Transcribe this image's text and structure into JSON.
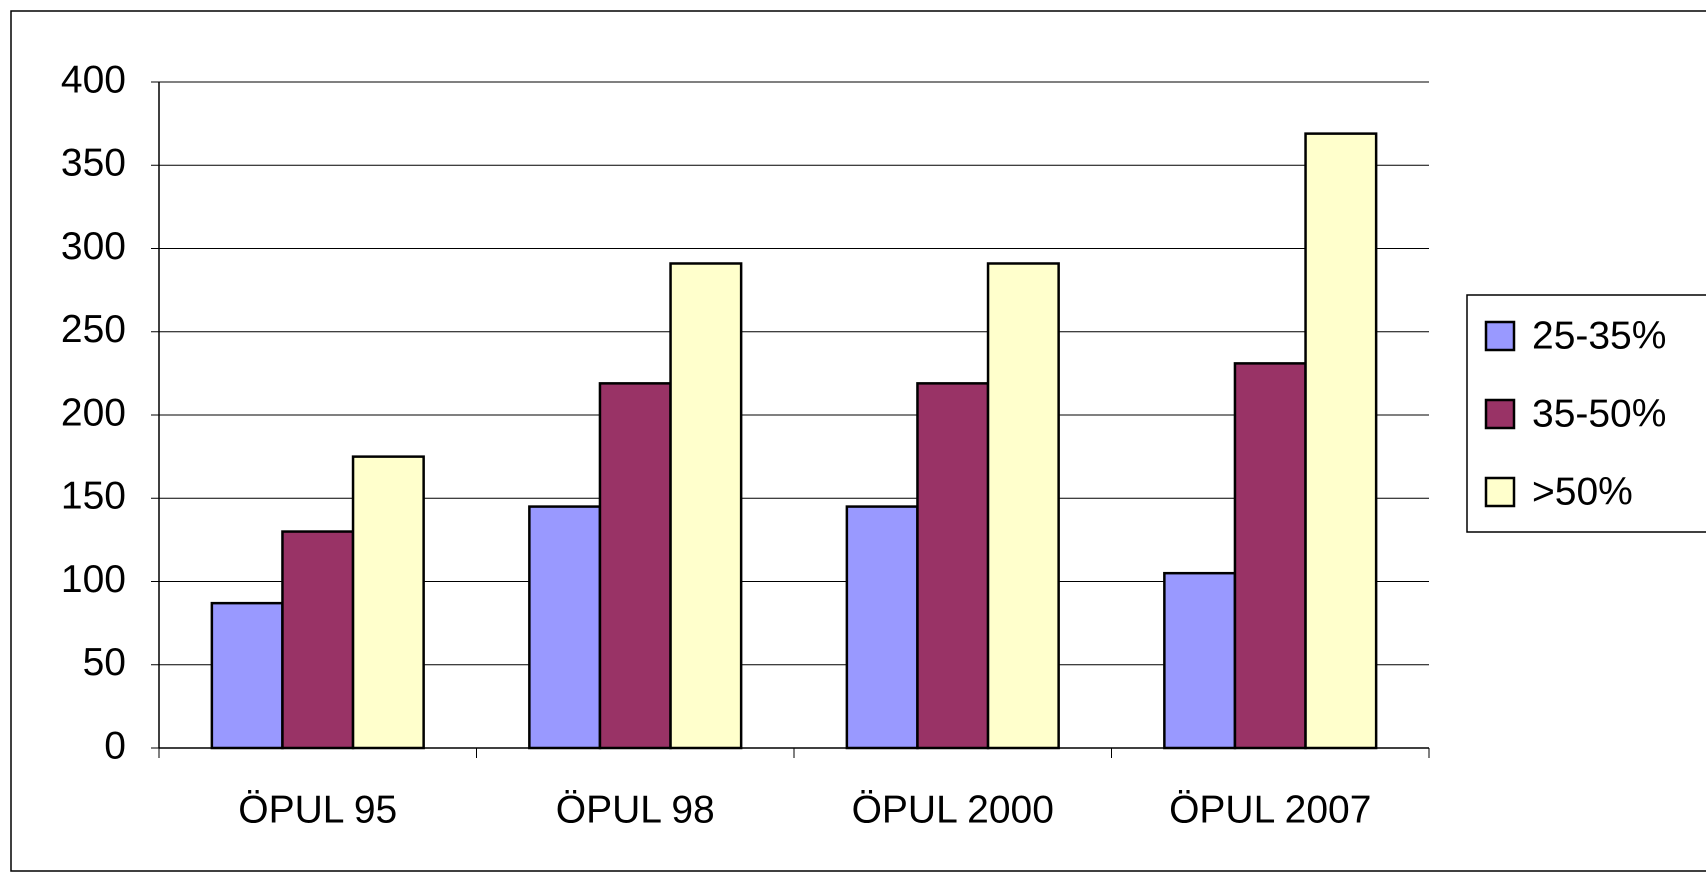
{
  "chart_data": {
    "type": "bar",
    "categories": [
      "ÖPUL 95",
      "ÖPUL 98",
      "ÖPUL 2000",
      "ÖPUL 2007"
    ],
    "series": [
      {
        "name": "25-35%",
        "color": "#9999ff",
        "values": [
          87,
          145,
          145,
          105
        ]
      },
      {
        "name": "35-50%",
        "color": "#993366",
        "values": [
          130,
          219,
          219,
          231
        ]
      },
      {
        "name": ">50%",
        "color": "#ffffcc",
        "values": [
          175,
          291,
          291,
          369
        ]
      }
    ],
    "ylim": [
      0,
      400
    ],
    "yticks": [
      0,
      50,
      100,
      150,
      200,
      250,
      300,
      350,
      400
    ],
    "grid": true,
    "legend": "right"
  }
}
